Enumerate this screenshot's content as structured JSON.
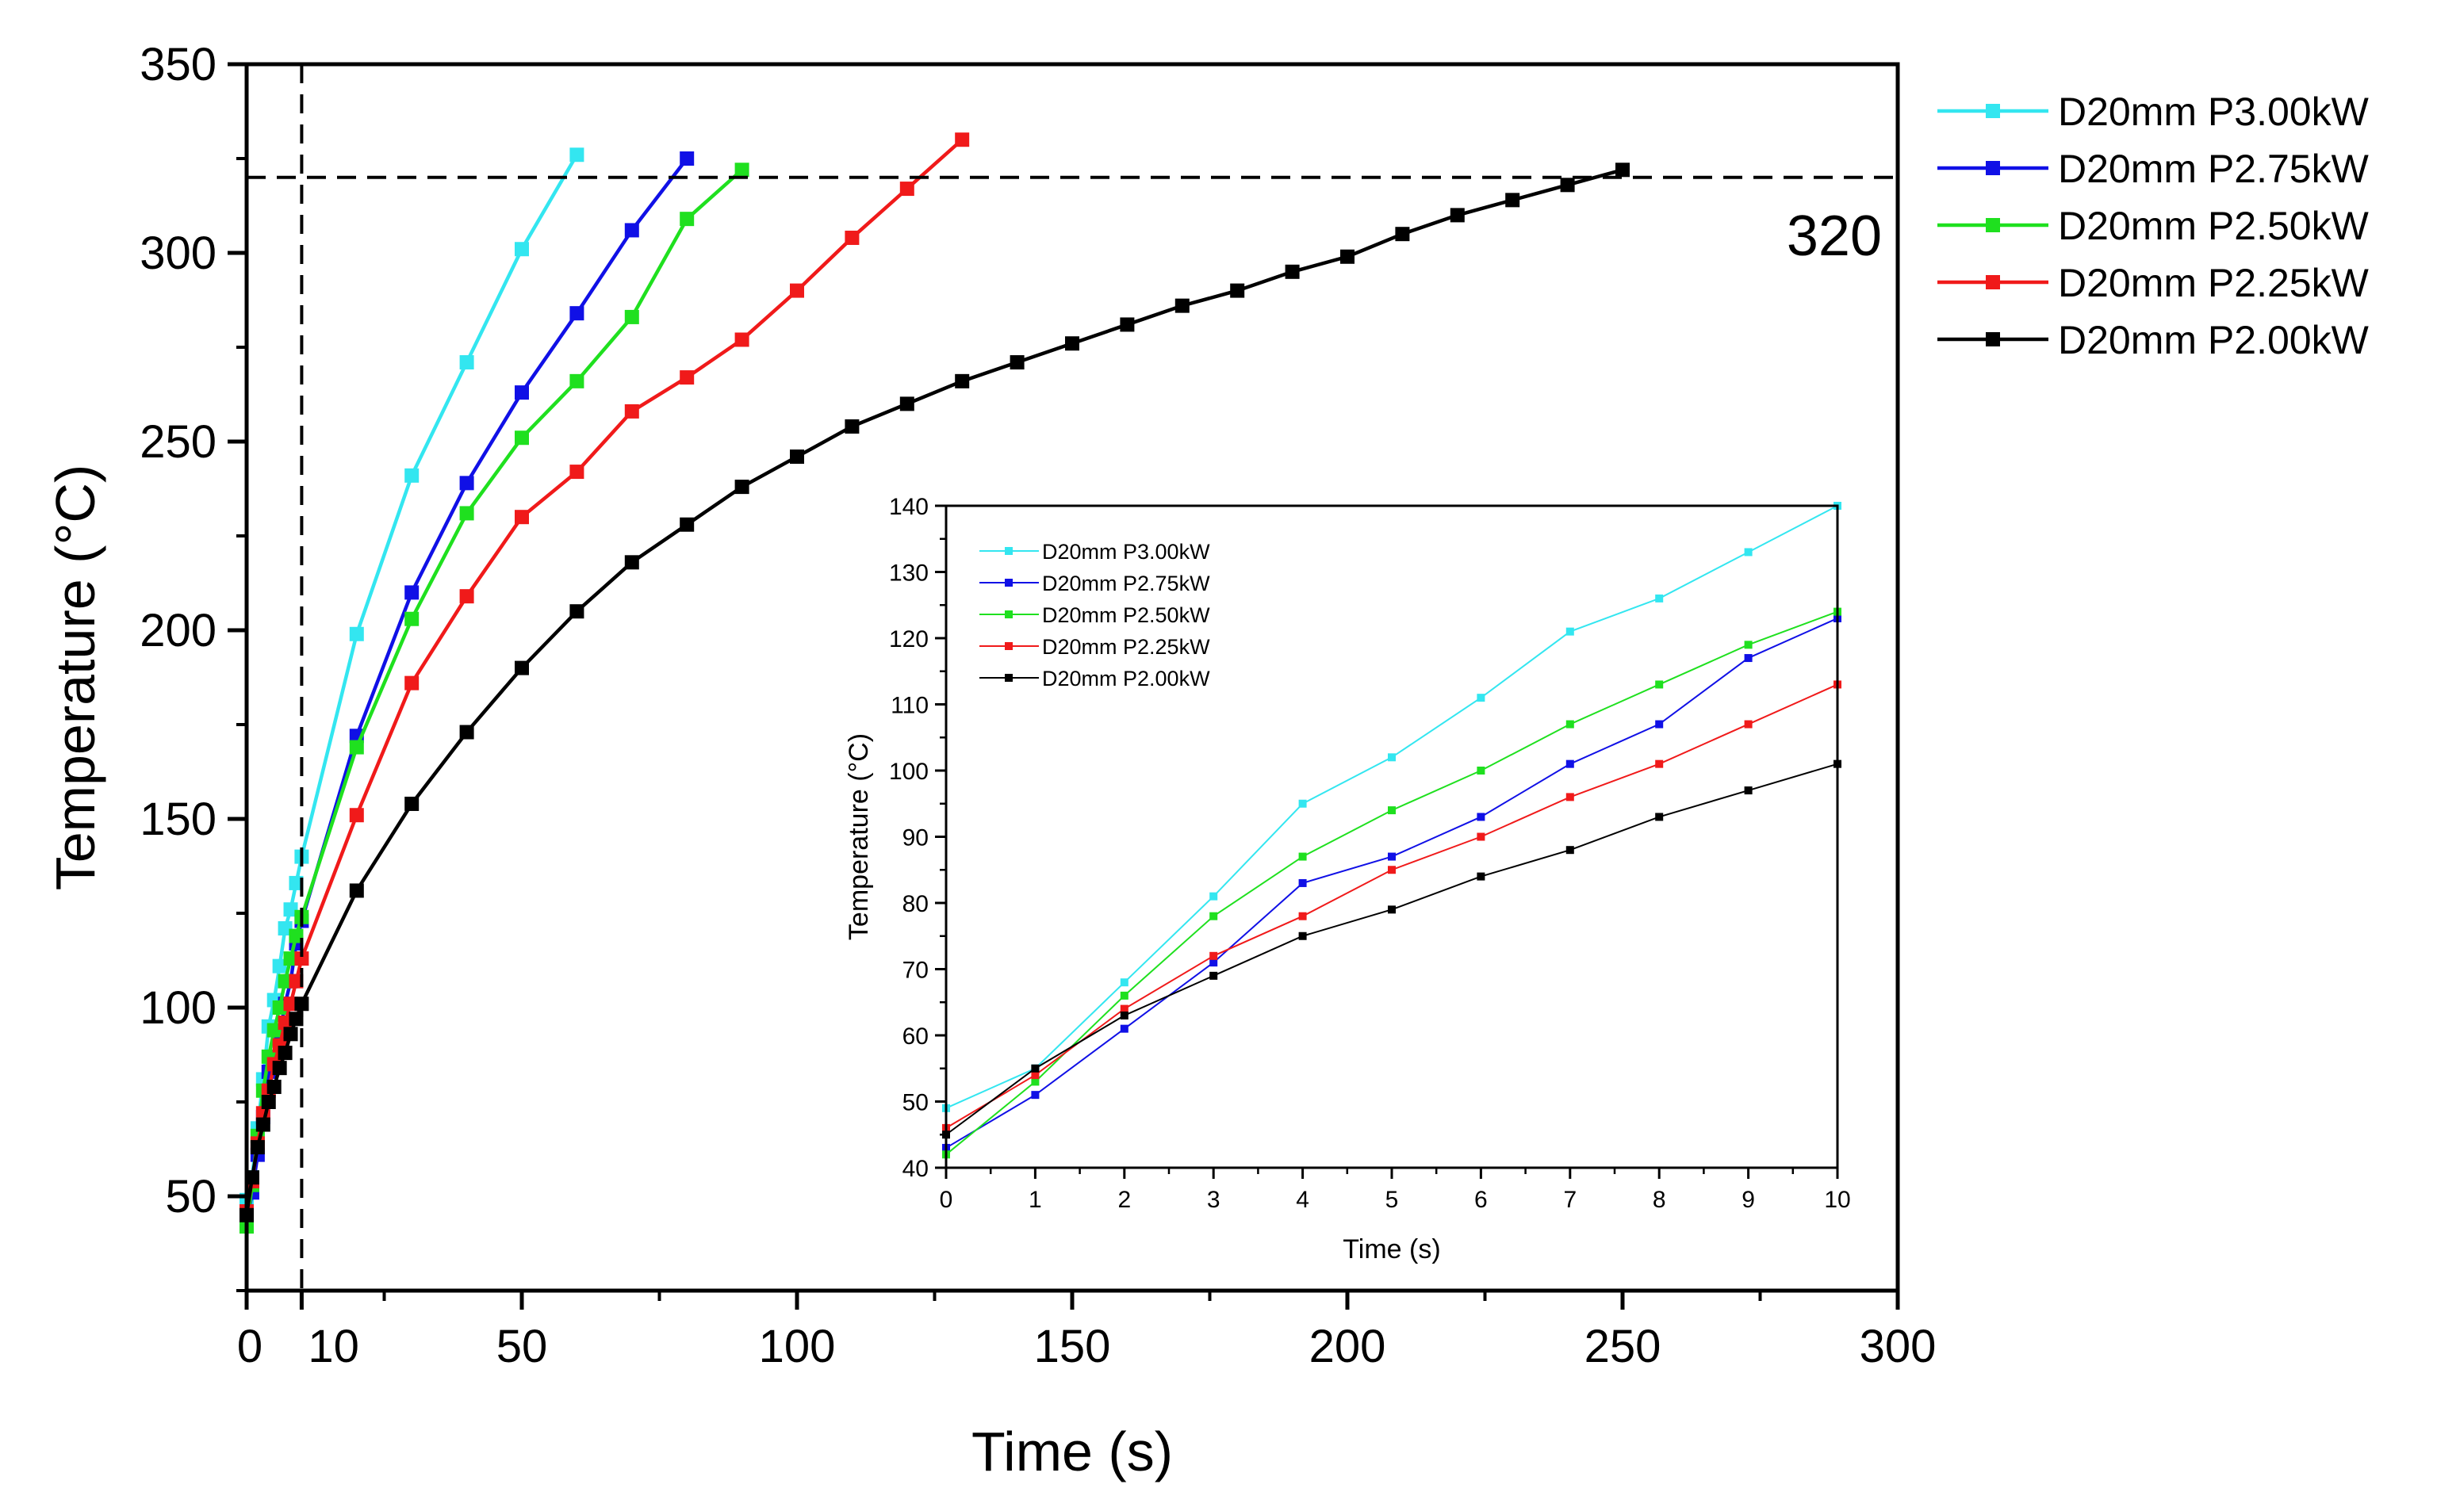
{
  "chart_data": [
    {
      "type": "line",
      "title": "",
      "xlabel": "Time (s)",
      "ylabel": "Temperature (°C)",
      "xlim": [
        0,
        300
      ],
      "ylim": [
        25,
        350
      ],
      "x_ticks": [
        0,
        10,
        50,
        100,
        150,
        200,
        250,
        300
      ],
      "y_ticks": [
        50,
        100,
        150,
        200,
        250,
        300,
        350
      ],
      "grid": false,
      "legend_position": "outside-right",
      "reference_lines": [
        {
          "orientation": "horizontal",
          "value": 320,
          "style": "dashed",
          "label": "320"
        },
        {
          "orientation": "vertical",
          "value": 10,
          "style": "dashed"
        }
      ],
      "series": [
        {
          "name": "D20mm P3.00kW",
          "color": "#33e6f0",
          "x": [
            0,
            1,
            2,
            3,
            4,
            5,
            6,
            7,
            8,
            9,
            10,
            20,
            30,
            40,
            50,
            60
          ],
          "y": [
            49,
            55,
            68,
            81,
            95,
            102,
            111,
            121,
            126,
            133,
            140,
            199,
            241,
            271,
            301,
            326
          ]
        },
        {
          "name": "D20mm P2.75kW",
          "color": "#1010e6",
          "x": [
            0,
            1,
            2,
            3,
            4,
            5,
            6,
            7,
            8,
            9,
            10,
            20,
            30,
            40,
            50,
            60,
            70,
            80
          ],
          "y": [
            43,
            51,
            61,
            71,
            83,
            87,
            93,
            101,
            107,
            117,
            123,
            172,
            210,
            239,
            263,
            284,
            306,
            325
          ]
        },
        {
          "name": "D20mm P2.50kW",
          "color": "#1fe01f",
          "x": [
            0,
            1,
            2,
            3,
            4,
            5,
            6,
            7,
            8,
            9,
            10,
            20,
            30,
            40,
            50,
            60,
            70,
            80,
            90
          ],
          "y": [
            42,
            53,
            66,
            78,
            87,
            94,
            100,
            107,
            113,
            119,
            124,
            169,
            203,
            231,
            251,
            266,
            283,
            309,
            322
          ]
        },
        {
          "name": "D20mm P2.25kW",
          "color": "#f01a1a",
          "x": [
            0,
            1,
            2,
            3,
            4,
            5,
            6,
            7,
            8,
            9,
            10,
            20,
            30,
            40,
            50,
            60,
            70,
            80,
            90,
            100,
            110,
            120,
            130
          ],
          "y": [
            46,
            54,
            64,
            72,
            78,
            85,
            90,
            96,
            101,
            107,
            113,
            151,
            186,
            209,
            230,
            242,
            258,
            267,
            277,
            290,
            304,
            317,
            330
          ]
        },
        {
          "name": "D20mm P2.00kW",
          "color": "#000000",
          "x": [
            0,
            1,
            2,
            3,
            4,
            5,
            6,
            7,
            8,
            9,
            10,
            20,
            30,
            40,
            50,
            60,
            70,
            80,
            90,
            100,
            110,
            120,
            130,
            140,
            150,
            160,
            170,
            180,
            190,
            200,
            210,
            220,
            230,
            240,
            250
          ],
          "y": [
            45,
            55,
            63,
            69,
            75,
            79,
            84,
            88,
            93,
            97,
            101,
            131,
            154,
            173,
            190,
            205,
            218,
            228,
            238,
            246,
            254,
            260,
            266,
            271,
            276,
            281,
            286,
            290,
            295,
            299,
            305,
            310,
            314,
            318,
            322
          ]
        }
      ],
      "annotations": [
        "320"
      ]
    },
    {
      "type": "line",
      "title": "",
      "xlabel": "Time (s)",
      "ylabel": "Temperature (°C)",
      "xlim": [
        0,
        10
      ],
      "ylim": [
        40,
        140
      ],
      "x_ticks": [
        0,
        1,
        2,
        3,
        4,
        5,
        6,
        7,
        8,
        9,
        10
      ],
      "y_ticks": [
        40,
        50,
        60,
        70,
        80,
        90,
        100,
        110,
        120,
        130,
        140
      ],
      "grid": false,
      "legend_position": "top-left",
      "series": [
        {
          "name": "D20mm P3.00kW",
          "color": "#33e6f0",
          "x": [
            0,
            1,
            2,
            3,
            4,
            5,
            6,
            7,
            8,
            9,
            10
          ],
          "y": [
            49,
            55,
            68,
            81,
            95,
            102,
            111,
            121,
            126,
            133,
            140
          ]
        },
        {
          "name": "D20mm P2.75kW",
          "color": "#1010e6",
          "x": [
            0,
            1,
            2,
            3,
            4,
            5,
            6,
            7,
            8,
            9,
            10
          ],
          "y": [
            43,
            51,
            61,
            71,
            83,
            87,
            93,
            101,
            107,
            117,
            123
          ]
        },
        {
          "name": "D20mm P2.50kW",
          "color": "#1fe01f",
          "x": [
            0,
            1,
            2,
            3,
            4,
            5,
            6,
            7,
            8,
            9,
            10
          ],
          "y": [
            42,
            53,
            66,
            78,
            87,
            94,
            100,
            107,
            113,
            119,
            124
          ]
        },
        {
          "name": "D20mm P2.25kW",
          "color": "#f01a1a",
          "x": [
            0,
            1,
            2,
            3,
            4,
            5,
            6,
            7,
            8,
            9,
            10
          ],
          "y": [
            46,
            54,
            64,
            72,
            78,
            85,
            90,
            96,
            101,
            107,
            113
          ]
        },
        {
          "name": "D20mm P2.00kW",
          "color": "#000000",
          "x": [
            0,
            1,
            2,
            3,
            4,
            5,
            6,
            7,
            8,
            9,
            10
          ],
          "y": [
            45,
            55,
            63,
            69,
            75,
            79,
            84,
            88,
            93,
            97,
            101
          ]
        }
      ]
    }
  ]
}
